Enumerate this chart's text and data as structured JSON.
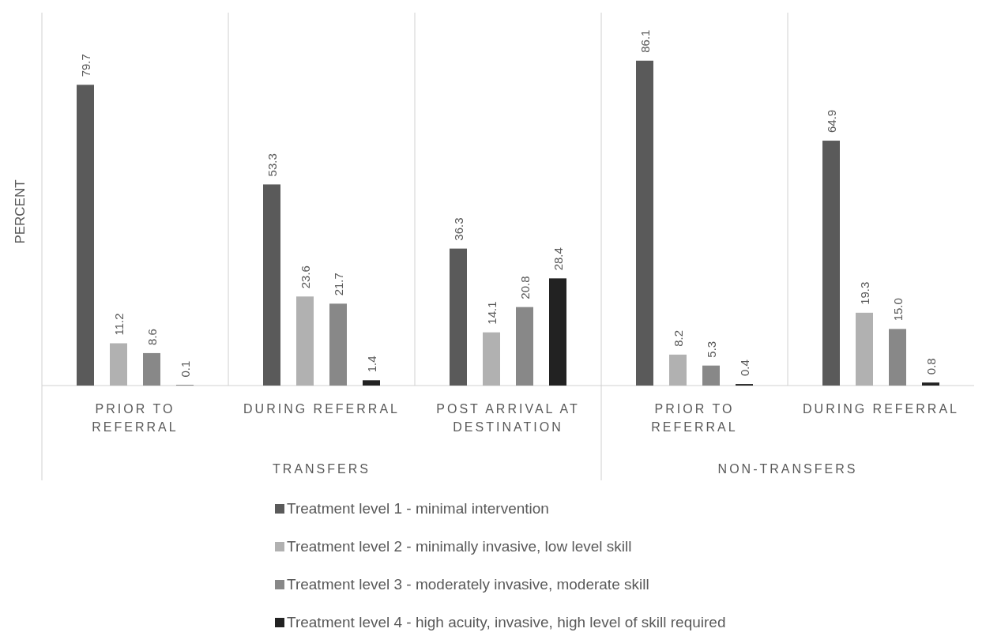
{
  "chart_data": {
    "type": "bar",
    "ylabel": "PERCENT",
    "categories": [
      "PRIOR TO REFERRAL",
      "DURING REFERRAL",
      "POST ARRIVAL AT DESTINATION",
      "PRIOR TO REFERRAL",
      "DURING REFERRAL"
    ],
    "series": [
      {
        "name": "Treatment level 1 - minimal intervention",
        "color": "#5a5a5a",
        "values": [
          79.7,
          53.3,
          36.3,
          86.1,
          64.9
        ],
        "value_labels": [
          "79.7",
          "53.3",
          "36.3",
          "86.1",
          "64.9"
        ]
      },
      {
        "name": "Treatment level 2 - minimally invasive, low level skill",
        "color": "#b1b1b1",
        "values": [
          11.2,
          23.6,
          14.1,
          8.2,
          19.3
        ],
        "value_labels": [
          "11.2",
          "23.6",
          "14.1",
          "8.2",
          "19.3"
        ]
      },
      {
        "name": "Treatment level 3 - moderately invasive, moderate skill",
        "color": "#888888",
        "values": [
          8.6,
          21.7,
          20.8,
          5.3,
          15.0
        ],
        "value_labels": [
          "8.6",
          "21.7",
          "20.8",
          "5.3",
          "15.0"
        ]
      },
      {
        "name": "Treatment level 4 - high acuity, invasive, high level of skill required",
        "color": "#222222",
        "values": [
          0.1,
          1.4,
          28.4,
          0.4,
          0.8
        ],
        "value_labels": [
          "0.1",
          "1.4",
          "28.4",
          "0.4",
          "0.8"
        ]
      }
    ],
    "annotations": [
      "TRANSFERS",
      "NON-TRANSFERS"
    ],
    "legend": "bottom"
  }
}
